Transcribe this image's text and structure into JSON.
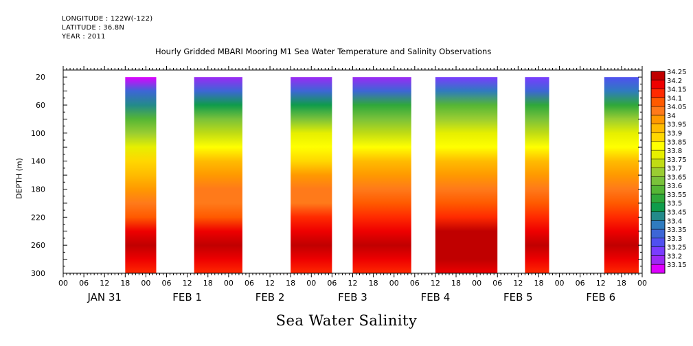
{
  "header": {
    "longitude": "LONGITUDE : 122W(-122)",
    "latitude": "LATITUDE : 36.8N",
    "year": "YEAR : 2011"
  },
  "chart_data": {
    "type": "heatmap",
    "title": "Hourly Gridded MBARI Mooring M1 Sea Water Temperature and Salinity Observations",
    "xlabel": "Sea Water Salinity",
    "ylabel": "DEPTH (m)",
    "x_hour_ticks": [
      "00",
      "06",
      "12",
      "18",
      "00",
      "06",
      "12",
      "18",
      "00",
      "06",
      "12",
      "18",
      "00",
      "06",
      "12",
      "18",
      "00",
      "06",
      "12",
      "18",
      "00",
      "06",
      "12",
      "18",
      "00",
      "06",
      "12",
      "18",
      "00"
    ],
    "day_labels": [
      "JAN 31",
      "FEB  1",
      "FEB  2",
      "FEB  3",
      "FEB  4",
      "FEB  5",
      "FEB  6"
    ],
    "x_range_hours_from_jan31_00": [
      0,
      168
    ],
    "y_ticks": [
      20,
      60,
      100,
      140,
      180,
      220,
      260,
      300
    ],
    "ylim": [
      300,
      10
    ],
    "y_reversed": true,
    "colorbar": {
      "levels": [
        "33.15",
        "33.2",
        "33.25",
        "33.3",
        "33.35",
        "33.4",
        "33.45",
        "33.5",
        "33.55",
        "33.6",
        "33.65",
        "33.7",
        "33.75",
        "33.8",
        "33.85",
        "33.9",
        "33.95",
        "34",
        "34.05",
        "34.1",
        "34.15",
        "34.2",
        "34.25"
      ],
      "colors": [
        "#dd00ff",
        "#9c29f5",
        "#7a3cff",
        "#5050f0",
        "#3d66d6",
        "#2f7bbf",
        "#238a8a",
        "#0f9c4b",
        "#2fa83a",
        "#55b635",
        "#7ac23a",
        "#9acd32",
        "#c0dc14",
        "#e6ef00",
        "#ffff00",
        "#ffd700",
        "#ffbb00",
        "#ff9900",
        "#ff7a1a",
        "#ff5a00",
        "#ff2a00",
        "#ee0000",
        "#c00000"
      ]
    },
    "data_blocks": [
      {
        "start_hour": 18,
        "end_hour": 27,
        "depth_salinity": [
          [
            20,
            33.15
          ],
          [
            40,
            33.35
          ],
          [
            60,
            33.45
          ],
          [
            80,
            33.6
          ],
          [
            100,
            33.7
          ],
          [
            120,
            33.8
          ],
          [
            140,
            33.9
          ],
          [
            160,
            33.95
          ],
          [
            180,
            34.0
          ],
          [
            200,
            34.05
          ],
          [
            220,
            34.1
          ],
          [
            240,
            34.2
          ],
          [
            260,
            34.25
          ],
          [
            280,
            34.2
          ],
          [
            300,
            34.15
          ]
        ]
      },
      {
        "start_hour": 38,
        "end_hour": 52,
        "depth_salinity": [
          [
            20,
            33.2
          ],
          [
            40,
            33.35
          ],
          [
            60,
            33.5
          ],
          [
            80,
            33.65
          ],
          [
            100,
            33.75
          ],
          [
            120,
            33.85
          ],
          [
            140,
            33.95
          ],
          [
            160,
            34.0
          ],
          [
            180,
            34.05
          ],
          [
            200,
            34.05
          ],
          [
            220,
            34.1
          ],
          [
            240,
            34.2
          ],
          [
            260,
            34.25
          ],
          [
            280,
            34.2
          ],
          [
            300,
            34.15
          ]
        ]
      },
      {
        "start_hour": 66,
        "end_hour": 78,
        "depth_salinity": [
          [
            20,
            33.2
          ],
          [
            40,
            33.35
          ],
          [
            60,
            33.5
          ],
          [
            80,
            33.65
          ],
          [
            100,
            33.8
          ],
          [
            120,
            33.85
          ],
          [
            140,
            33.9
          ],
          [
            160,
            34.0
          ],
          [
            180,
            34.05
          ],
          [
            200,
            34.05
          ],
          [
            220,
            34.15
          ],
          [
            240,
            34.2
          ],
          [
            260,
            34.25
          ],
          [
            280,
            34.2
          ],
          [
            300,
            34.15
          ]
        ]
      },
      {
        "start_hour": 84,
        "end_hour": 101,
        "depth_salinity": [
          [
            20,
            33.2
          ],
          [
            40,
            33.35
          ],
          [
            60,
            33.55
          ],
          [
            80,
            33.65
          ],
          [
            100,
            33.75
          ],
          [
            120,
            33.85
          ],
          [
            140,
            33.95
          ],
          [
            160,
            34.0
          ],
          [
            180,
            34.05
          ],
          [
            200,
            34.1
          ],
          [
            220,
            34.15
          ],
          [
            240,
            34.2
          ],
          [
            260,
            34.25
          ],
          [
            280,
            34.2
          ],
          [
            300,
            34.15
          ]
        ]
      },
      {
        "start_hour": 108,
        "end_hour": 126,
        "depth_salinity": [
          [
            20,
            33.25
          ],
          [
            40,
            33.4
          ],
          [
            60,
            33.6
          ],
          [
            80,
            33.7
          ],
          [
            100,
            33.8
          ],
          [
            120,
            33.85
          ],
          [
            140,
            33.95
          ],
          [
            160,
            34.0
          ],
          [
            180,
            34.05
          ],
          [
            200,
            34.1
          ],
          [
            220,
            34.15
          ],
          [
            240,
            34.25
          ],
          [
            260,
            34.25
          ],
          [
            280,
            34.25
          ],
          [
            300,
            34.2
          ]
        ]
      },
      {
        "start_hour": 134,
        "end_hour": 141,
        "depth_salinity": [
          [
            20,
            33.25
          ],
          [
            40,
            33.35
          ],
          [
            60,
            33.55
          ],
          [
            80,
            33.65
          ],
          [
            100,
            33.75
          ],
          [
            120,
            33.85
          ],
          [
            140,
            33.95
          ],
          [
            160,
            34.0
          ],
          [
            180,
            34.05
          ],
          [
            200,
            34.1
          ],
          [
            220,
            34.15
          ],
          [
            240,
            34.2
          ],
          [
            260,
            34.25
          ],
          [
            280,
            34.2
          ],
          [
            300,
            34.15
          ]
        ]
      },
      {
        "start_hour": 157,
        "end_hour": 167,
        "depth_salinity": [
          [
            20,
            33.3
          ],
          [
            40,
            33.4
          ],
          [
            60,
            33.55
          ],
          [
            80,
            33.7
          ],
          [
            100,
            33.8
          ],
          [
            120,
            33.85
          ],
          [
            140,
            33.95
          ],
          [
            160,
            34.0
          ],
          [
            180,
            34.05
          ],
          [
            200,
            34.1
          ],
          [
            220,
            34.15
          ],
          [
            240,
            34.2
          ],
          [
            260,
            34.25
          ],
          [
            280,
            34.2
          ],
          [
            300,
            34.15
          ]
        ]
      }
    ]
  }
}
